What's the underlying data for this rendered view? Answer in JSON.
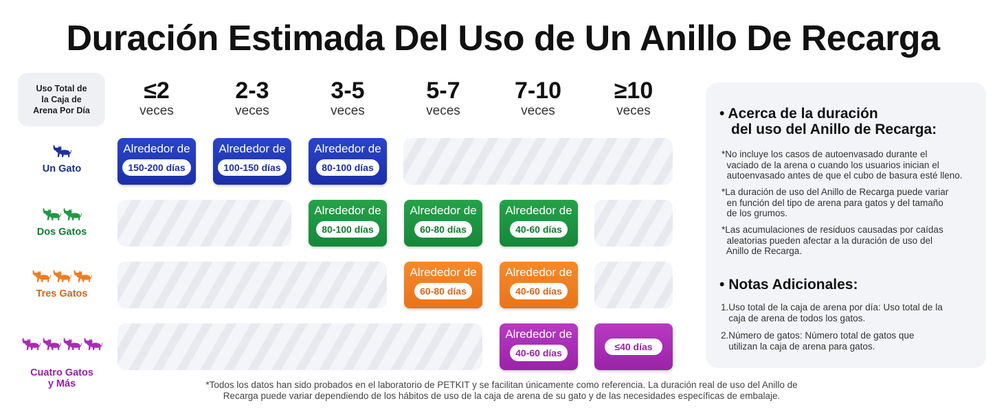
{
  "title": "Duración Estimada Del Uso de Un Anillo De Recarga",
  "corner_label": "Uso Total de\nla Caja de\nArena Por Día",
  "columns": [
    {
      "range": "≤2",
      "unit": "veces"
    },
    {
      "range": "2-3",
      "unit": "veces"
    },
    {
      "range": "3-5",
      "unit": "veces"
    },
    {
      "range": "5-7",
      "unit": "veces"
    },
    {
      "range": "7-10",
      "unit": "veces"
    },
    {
      "range": "≥10",
      "unit": "veces"
    }
  ],
  "rows": [
    {
      "label": "Un Gato",
      "color": "#1b2d8f",
      "cat_color": "#1e2f9e"
    },
    {
      "label": "Dos Gatos",
      "color": "#137a33",
      "cat_color": "#1f9a44"
    },
    {
      "label": "Tres Gatos",
      "color": "#d8661a",
      "cat_color": "#ef7d22"
    },
    {
      "label": "Cuatro Gatos\ny Más",
      "color": "#9a1fa6",
      "cat_color": "#a92cb5"
    }
  ],
  "cards": {
    "r1": [
      {
        "top": "Alrededor de",
        "value": "150-200 días"
      },
      {
        "top": "Alrededor de",
        "value": "100-150 días"
      },
      {
        "top": "Alrededor de",
        "value": "80-100 días"
      }
    ],
    "r2": [
      {
        "top": "Alrededor de",
        "value": "80-100 días"
      },
      {
        "top": "Alrededor de",
        "value": "60-80 días"
      },
      {
        "top": "Alrededor de",
        "value": "40-60 días"
      }
    ],
    "r3": [
      {
        "top": "Alrededor de",
        "value": "60-80 días"
      },
      {
        "top": "Alrededor de",
        "value": "40-60 días"
      }
    ],
    "r4": [
      {
        "top": "Alrededor de",
        "value": "40-60 días"
      },
      {
        "value": "≤40 días"
      }
    ]
  },
  "info": {
    "section1_title_line1": "Acerca de la duración",
    "section1_title_line2": "del uso del Anillo de Recarga:",
    "notes": [
      "*No incluye los casos de autoenvasado durante el\n  vaciado de la arena o cuando los usuarios inician el\n  autoenvasado antes de que el cubo de basura esté lleno.",
      "*La duración de uso del Anillo de Recarga puede variar\n  en función del tipo de arena para gatos y del tamaño\n  de los grumos.",
      "*Las acumulaciones de residuos causadas por caídas\n  aleatorias pueden afectar a la duración de uso del\n  Anillo de Recarga."
    ],
    "section2_title": "Notas Adicionales:",
    "additional": [
      "1.Uso total de la caja de arena por día: Uso total de la\n   caja de arena de todos los gatos.",
      "2.Número de gatos: Número total de gatos que\n   utilizan la caja de arena para gatos."
    ],
    "bullet": "•"
  },
  "footnote_line1": "*Todos los datos han sido probados en el laboratorio de PETKIT y se facilitan únicamente como referencia. La duración real de uso del Anillo de",
  "footnote_line2": "Recarga puede variar dependiendo de los hábitos de uso de la caja de arena de su gato y de las necesidades específicas de embalaje."
}
